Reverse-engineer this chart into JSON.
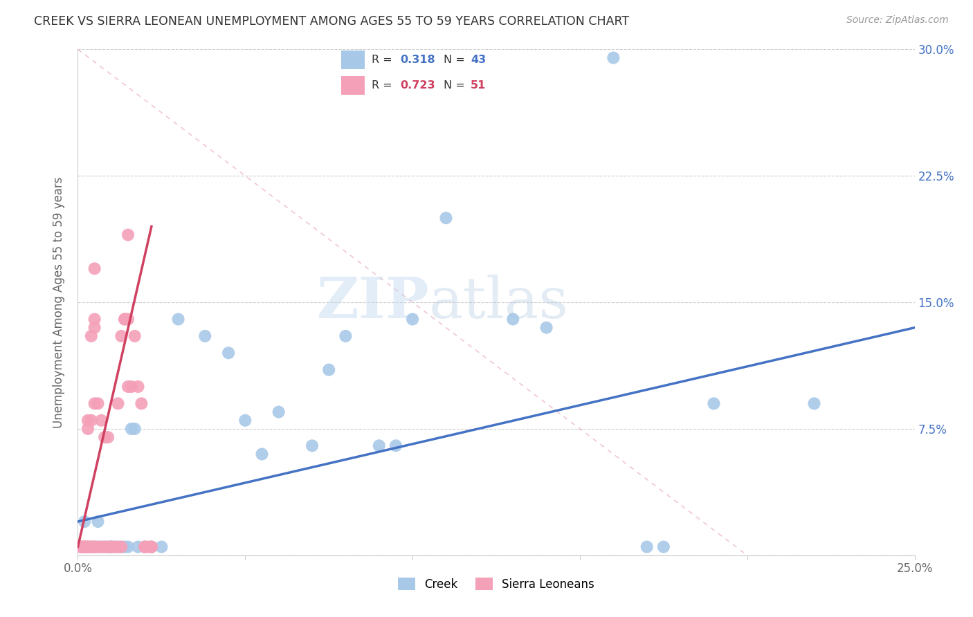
{
  "title": "CREEK VS SIERRA LEONEAN UNEMPLOYMENT AMONG AGES 55 TO 59 YEARS CORRELATION CHART",
  "source": "Source: ZipAtlas.com",
  "ylabel": "Unemployment Among Ages 55 to 59 years",
  "xlim": [
    0,
    0.25
  ],
  "ylim": [
    0,
    0.3
  ],
  "creek_R": 0.318,
  "creek_N": 43,
  "sl_R": 0.723,
  "sl_N": 51,
  "creek_color": "#a8c8e8",
  "creek_line_color": "#4472c4",
  "sl_color": "#f4a0b8",
  "sl_line_color": "#d04060",
  "watermark_zip": "ZIP",
  "watermark_atlas": "atlas",
  "creek_points": [
    [
      0.001,
      0.005
    ],
    [
      0.002,
      0.02
    ],
    [
      0.003,
      0.005
    ],
    [
      0.004,
      0.005
    ],
    [
      0.005,
      0.005
    ],
    [
      0.006,
      0.005
    ],
    [
      0.006,
      0.02
    ],
    [
      0.007,
      0.005
    ],
    [
      0.008,
      0.005
    ],
    [
      0.009,
      0.005
    ],
    [
      0.01,
      0.005
    ],
    [
      0.01,
      0.005
    ],
    [
      0.011,
      0.005
    ],
    [
      0.012,
      0.005
    ],
    [
      0.013,
      0.005
    ],
    [
      0.014,
      0.005
    ],
    [
      0.015,
      0.005
    ],
    [
      0.016,
      0.075
    ],
    [
      0.017,
      0.075
    ],
    [
      0.018,
      0.005
    ],
    [
      0.02,
      0.005
    ],
    [
      0.022,
      0.005
    ],
    [
      0.025,
      0.005
    ],
    [
      0.03,
      0.14
    ],
    [
      0.038,
      0.13
    ],
    [
      0.045,
      0.12
    ],
    [
      0.05,
      0.08
    ],
    [
      0.055,
      0.06
    ],
    [
      0.06,
      0.085
    ],
    [
      0.07,
      0.065
    ],
    [
      0.075,
      0.11
    ],
    [
      0.08,
      0.13
    ],
    [
      0.09,
      0.065
    ],
    [
      0.095,
      0.065
    ],
    [
      0.1,
      0.14
    ],
    [
      0.11,
      0.2
    ],
    [
      0.13,
      0.14
    ],
    [
      0.14,
      0.135
    ],
    [
      0.16,
      0.295
    ],
    [
      0.17,
      0.005
    ],
    [
      0.175,
      0.005
    ],
    [
      0.19,
      0.09
    ],
    [
      0.22,
      0.09
    ]
  ],
  "sl_points": [
    [
      0.001,
      0.005
    ],
    [
      0.001,
      0.005
    ],
    [
      0.002,
      0.005
    ],
    [
      0.002,
      0.005
    ],
    [
      0.002,
      0.005
    ],
    [
      0.003,
      0.005
    ],
    [
      0.003,
      0.005
    ],
    [
      0.003,
      0.075
    ],
    [
      0.003,
      0.08
    ],
    [
      0.004,
      0.005
    ],
    [
      0.004,
      0.08
    ],
    [
      0.004,
      0.13
    ],
    [
      0.005,
      0.005
    ],
    [
      0.005,
      0.09
    ],
    [
      0.005,
      0.135
    ],
    [
      0.005,
      0.14
    ],
    [
      0.005,
      0.17
    ],
    [
      0.006,
      0.005
    ],
    [
      0.006,
      0.09
    ],
    [
      0.007,
      0.005
    ],
    [
      0.007,
      0.08
    ],
    [
      0.008,
      0.005
    ],
    [
      0.008,
      0.07
    ],
    [
      0.009,
      0.005
    ],
    [
      0.009,
      0.07
    ],
    [
      0.01,
      0.005
    ],
    [
      0.01,
      0.005
    ],
    [
      0.011,
      0.005
    ],
    [
      0.012,
      0.005
    ],
    [
      0.012,
      0.09
    ],
    [
      0.013,
      0.005
    ],
    [
      0.013,
      0.13
    ],
    [
      0.014,
      0.14
    ],
    [
      0.014,
      0.14
    ],
    [
      0.015,
      0.1
    ],
    [
      0.015,
      0.14
    ],
    [
      0.015,
      0.19
    ],
    [
      0.016,
      0.1
    ],
    [
      0.017,
      0.13
    ],
    [
      0.018,
      0.1
    ],
    [
      0.019,
      0.09
    ],
    [
      0.02,
      0.005
    ],
    [
      0.02,
      0.005
    ],
    [
      0.021,
      0.005
    ],
    [
      0.022,
      0.005
    ],
    [
      0.022,
      0.005
    ],
    [
      0.003,
      0.005
    ],
    [
      0.004,
      0.005
    ],
    [
      0.005,
      0.005
    ],
    [
      0.001,
      0.005
    ],
    [
      0.002,
      0.005
    ]
  ]
}
